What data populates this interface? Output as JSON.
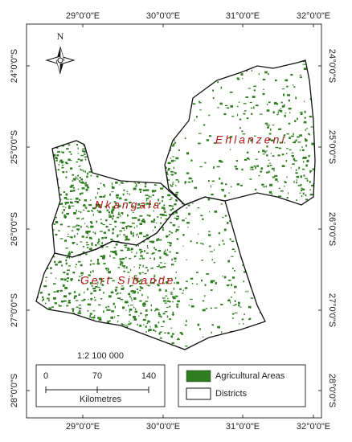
{
  "map": {
    "graticule": {
      "longitudes": [
        "29°0'0\"E",
        "30°0'0\"E",
        "31°0'0\"E",
        "32°0'0\"E"
      ],
      "latitudes": [
        "24°0'0\"S",
        "25°0'0\"S",
        "26°0'0\"S",
        "27°0'0\"S",
        "28°0'0\"S"
      ]
    },
    "north": "N",
    "districts": [
      "Ehlanzeni",
      "Nkangala",
      "Gert Sibande"
    ],
    "scale": {
      "ratio": "1:2 100 000",
      "ticks": [
        0,
        70,
        140
      ],
      "unit": "Kilometres"
    },
    "legend": [
      "Agricultural Areas",
      "Districts"
    ]
  }
}
